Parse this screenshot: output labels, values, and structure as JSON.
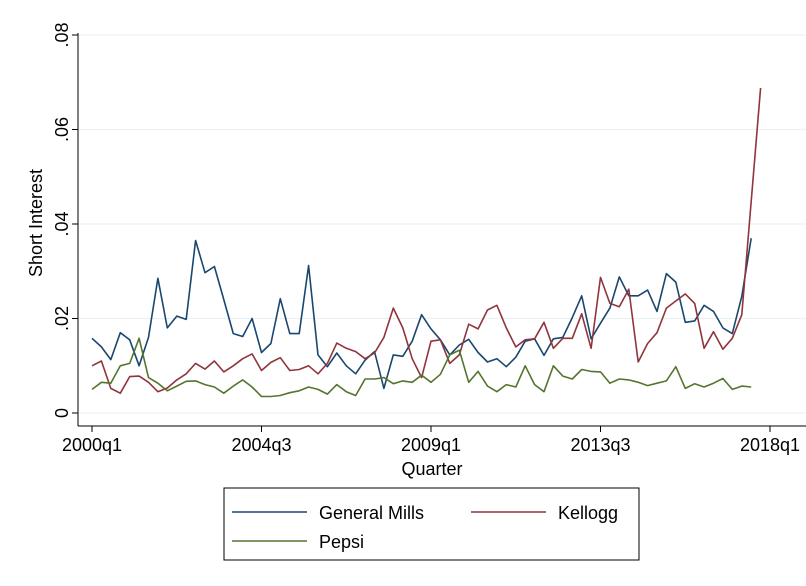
{
  "chart_data": {
    "type": "line",
    "title": "",
    "xlabel": "Quarter",
    "ylabel": "Short Interest",
    "x_tick_labels": [
      "2000q1",
      "2004q3",
      "2009q1",
      "2013q3",
      "2018q1"
    ],
    "x_tick_index": [
      0,
      18,
      36,
      54,
      72
    ],
    "y_ticks": [
      0,
      0.02,
      0.04,
      0.06,
      0.08
    ],
    "y_tick_labels": [
      "0",
      ".02",
      ".04",
      ".06",
      ".08"
    ],
    "ylim": [
      0,
      0.08
    ],
    "xlim_index": [
      0,
      72
    ],
    "grid": "horizontal",
    "legend_position": "bottom",
    "series": [
      {
        "name": "General Mills",
        "color": "#1a476f",
        "values": [
          0.0158,
          0.014,
          0.0113,
          0.017,
          0.0155,
          0.01,
          0.016,
          0.0285,
          0.018,
          0.0205,
          0.0198,
          0.0365,
          0.0297,
          0.031,
          0.024,
          0.0168,
          0.0162,
          0.02,
          0.0128,
          0.0147,
          0.0242,
          0.0168,
          0.0168,
          0.0312,
          0.0123,
          0.0098,
          0.0127,
          0.01,
          0.0083,
          0.0112,
          0.013,
          0.0052,
          0.0123,
          0.012,
          0.0152,
          0.0208,
          0.0178,
          0.0155,
          0.0123,
          0.0144,
          0.0156,
          0.0128,
          0.0108,
          0.0115,
          0.0098,
          0.0118,
          0.0152,
          0.0157,
          0.0122,
          0.0157,
          0.016,
          0.0202,
          0.0248,
          0.0157,
          0.019,
          0.0222,
          0.0288,
          0.0248,
          0.0248,
          0.026,
          0.0215,
          0.0295,
          0.0277,
          0.0192,
          0.0195,
          0.0228,
          0.0215,
          0.018,
          0.0168,
          0.0247,
          0.037
        ]
      },
      {
        "name": "Kellogg",
        "color": "#90353b",
        "values": [
          0.01,
          0.011,
          0.0052,
          0.0042,
          0.0077,
          0.0078,
          0.0065,
          0.0045,
          0.0053,
          0.007,
          0.0083,
          0.0105,
          0.0093,
          0.011,
          0.0087,
          0.01,
          0.0115,
          0.0125,
          0.009,
          0.0107,
          0.0117,
          0.009,
          0.0092,
          0.01,
          0.0083,
          0.0105,
          0.0148,
          0.0137,
          0.013,
          0.0115,
          0.0127,
          0.016,
          0.0222,
          0.018,
          0.0115,
          0.0075,
          0.0152,
          0.0155,
          0.0105,
          0.0123,
          0.0188,
          0.0178,
          0.0218,
          0.0228,
          0.018,
          0.014,
          0.0155,
          0.0157,
          0.0192,
          0.0137,
          0.0158,
          0.0158,
          0.021,
          0.0137,
          0.0287,
          0.0232,
          0.0225,
          0.0262,
          0.0108,
          0.0147,
          0.017,
          0.0222,
          0.0237,
          0.0252,
          0.0232,
          0.0137,
          0.0172,
          0.0135,
          0.0158,
          0.0208,
          0.0448,
          0.0688
        ]
      },
      {
        "name": "Pepsi",
        "color": "#55752f",
        "values": [
          0.005,
          0.0065,
          0.0063,
          0.01,
          0.0105,
          0.0158,
          0.0075,
          0.0063,
          0.0047,
          0.0057,
          0.0067,
          0.0068,
          0.006,
          0.0055,
          0.0042,
          0.0057,
          0.007,
          0.0055,
          0.0035,
          0.0035,
          0.0037,
          0.0043,
          0.0047,
          0.0055,
          0.005,
          0.004,
          0.006,
          0.0045,
          0.0037,
          0.0072,
          0.0072,
          0.0075,
          0.0062,
          0.0068,
          0.0065,
          0.008,
          0.0065,
          0.0082,
          0.0123,
          0.0133,
          0.0065,
          0.0088,
          0.0057,
          0.0045,
          0.006,
          0.0055,
          0.01,
          0.006,
          0.0045,
          0.01,
          0.0078,
          0.0072,
          0.0092,
          0.0088,
          0.0087,
          0.0063,
          0.0072,
          0.007,
          0.0065,
          0.0058,
          0.0063,
          0.0068,
          0.0098,
          0.0052,
          0.0062,
          0.0055,
          0.0063,
          0.0073,
          0.005,
          0.0057,
          0.0055
        ]
      }
    ]
  }
}
